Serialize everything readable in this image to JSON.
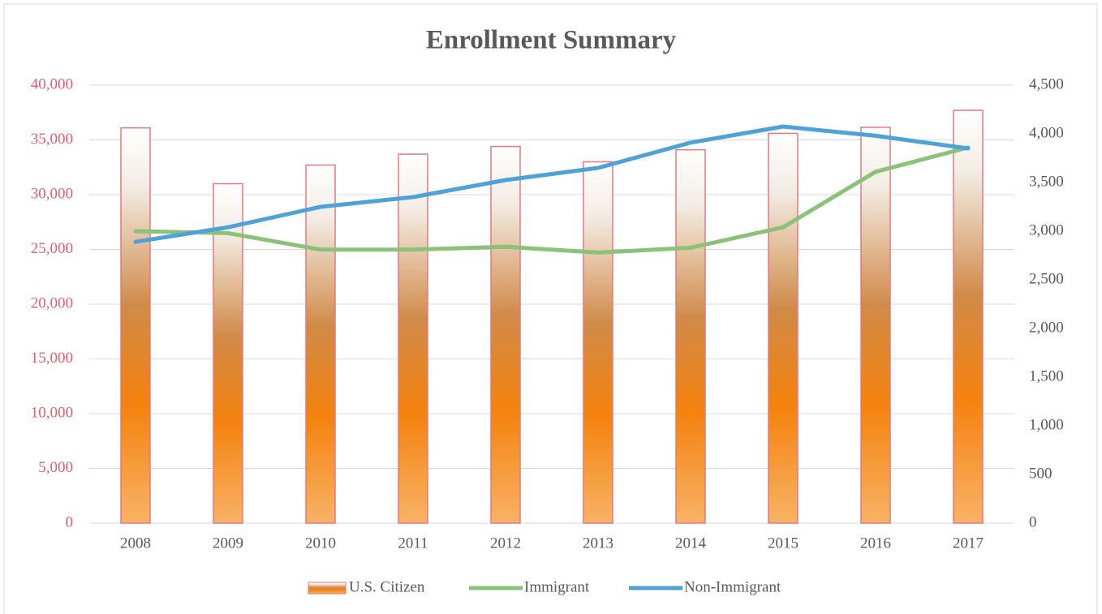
{
  "chart_data": {
    "type": "bar",
    "title": "Enrollment Summary",
    "categories": [
      "2008",
      "2009",
      "2010",
      "2011",
      "2012",
      "2013",
      "2014",
      "2015",
      "2016",
      "2017"
    ],
    "series": [
      {
        "name": "U.S. Citizen",
        "type": "bar",
        "color": "#f4820d",
        "values": [
          36100,
          31000,
          32700,
          33700,
          34400,
          33000,
          34100,
          35600,
          36150,
          37700
        ]
      },
      {
        "name": "Immigrant",
        "type": "line",
        "axis": "y2",
        "color": "#8cc17a",
        "values": [
          3000,
          2980,
          2810,
          2810,
          2840,
          2780,
          2830,
          3040,
          3610,
          3860
        ]
      },
      {
        "name": "Non-Immigrant",
        "type": "line",
        "axis": "y2",
        "color": "#4ea2d8",
        "values": [
          2890,
          3040,
          3250,
          3350,
          3525,
          3650,
          3910,
          4075,
          3980,
          3850
        ]
      }
    ],
    "ylim": [
      0,
      40000
    ],
    "yticks": [
      0,
      {
        "value": 5000,
        "label": "5,000"
      },
      {
        "value": 10000,
        "label": "10,000"
      },
      {
        "value": 15000,
        "label": "15,000"
      },
      {
        "value": 20000,
        "label": "20,000"
      },
      {
        "value": 25000,
        "label": "25,000"
      },
      {
        "value": 30000,
        "label": "30,000"
      },
      {
        "value": 35000,
        "label": "35,000"
      },
      {
        "value": 40000,
        "label": "40,000"
      }
    ],
    "y2lim": [
      0,
      4500
    ],
    "y2ticks": [
      0,
      500,
      {
        "value": 1000,
        "label": "1,000"
      },
      {
        "value": 1500,
        "label": "1,500"
      },
      {
        "value": 2000,
        "label": "2,000"
      },
      {
        "value": 2500,
        "label": "2,500"
      },
      {
        "value": 3000,
        "label": "3,000"
      },
      {
        "value": 3500,
        "label": "3,500"
      },
      {
        "value": 4000,
        "label": "4,000"
      },
      {
        "value": 4500,
        "label": "4,500"
      }
    ],
    "grid": true,
    "legend": "bottom"
  }
}
